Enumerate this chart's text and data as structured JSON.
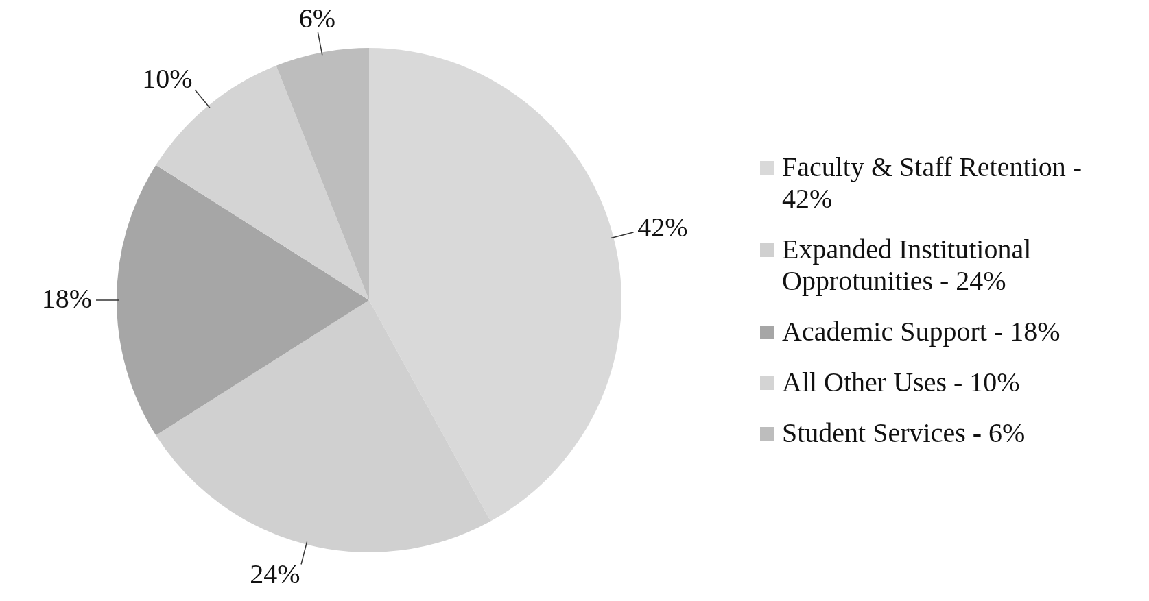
{
  "chart_data": {
    "type": "pie",
    "categories": [
      "Faculty & Staff Retention - 42%",
      "Expanded Institutional Opprotunities - 24%",
      "Academic Support - 18%",
      "All Other Uses - 10%",
      "Student Services - 6%"
    ],
    "values": [
      42,
      24,
      18,
      10,
      6
    ],
    "colors": [
      "#d9d9d9",
      "#d0d0d0",
      "#a6a6a6",
      "#d4d4d4",
      "#bdbdbd"
    ],
    "value_labels": [
      "42%",
      "24%",
      "18%",
      "10%",
      "6%"
    ],
    "legend": "right"
  }
}
